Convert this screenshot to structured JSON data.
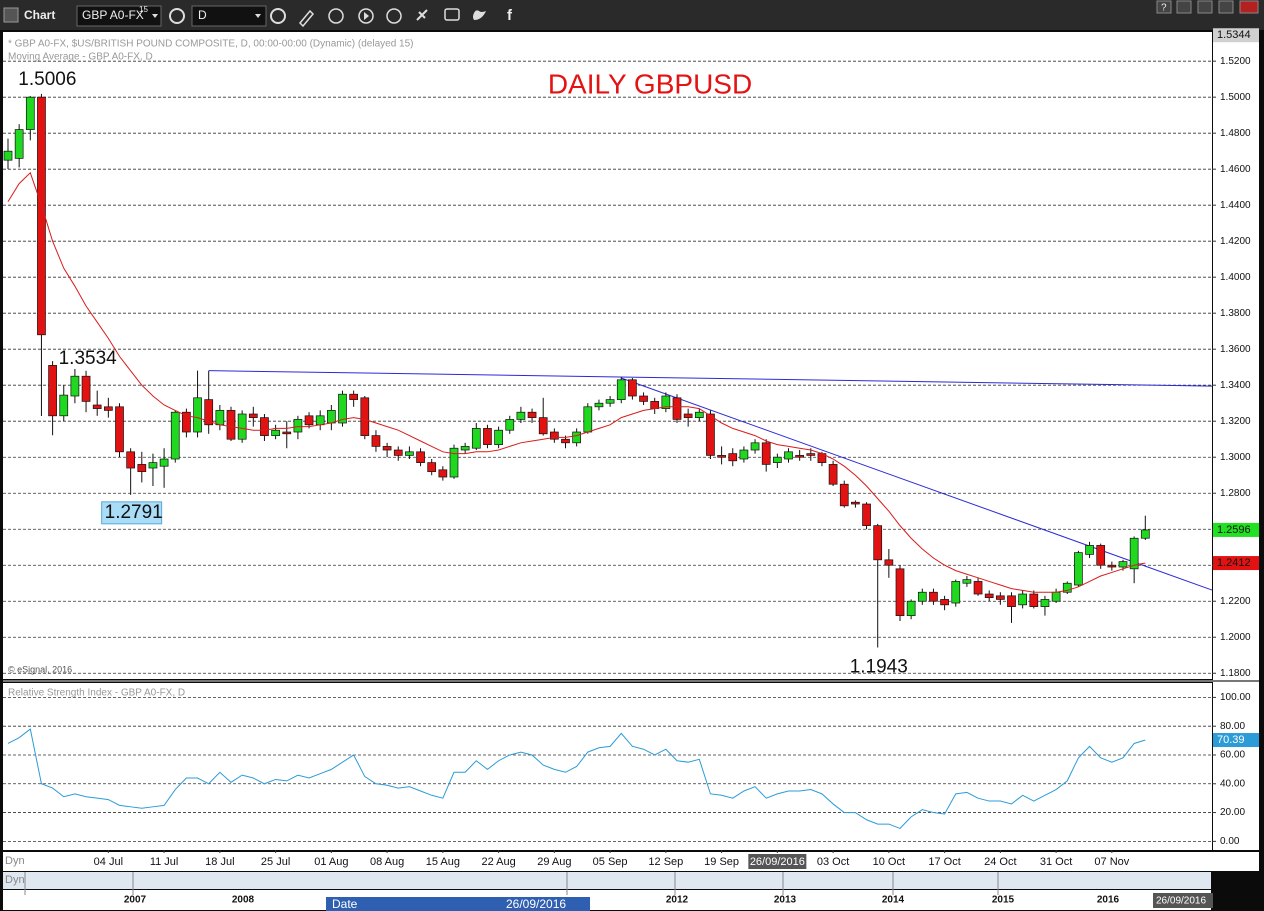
{
  "toolbar": {
    "title": "Chart",
    "symbol": "GBP A0-FX",
    "symbol_sup": "15",
    "interval": "D",
    "help": "?"
  },
  "chart_data": [
    {
      "type": "candlestick",
      "title": "DAILY GBPUSD",
      "subtitle": "* GBP A0-FX, $US/BRITISH POUND COMPOSITE, D, 00:00-00:00 (Dynamic) (delayed 15)",
      "copyright": "© eSignal, 2016",
      "categories": [
        null,
        null,
        null,
        null,
        null,
        null,
        null,
        null,
        null,
        "04 Jul",
        null,
        null,
        null,
        null,
        "11 Jul",
        null,
        null,
        null,
        null,
        "18 Jul",
        null,
        null,
        null,
        null,
        "25 Jul",
        null,
        null,
        null,
        null,
        "01 Aug",
        null,
        null,
        null,
        null,
        "08 Aug",
        null,
        null,
        null,
        null,
        "15 Aug",
        null,
        null,
        null,
        null,
        "22 Aug",
        null,
        null,
        null,
        null,
        "29 Aug",
        null,
        null,
        null,
        null,
        "05 Sep",
        null,
        null,
        null,
        null,
        "12 Sep",
        null,
        null,
        null,
        null,
        "19 Sep",
        null,
        null,
        null,
        null,
        "26/09/2016",
        null,
        null,
        null,
        null,
        "03 Oct",
        null,
        null,
        null,
        null,
        "10 Oct",
        null,
        null,
        null,
        null,
        "17 Oct",
        null,
        null,
        null,
        null,
        "24 Oct",
        null,
        null,
        null,
        null,
        "31 Oct",
        null,
        null,
        null,
        null,
        "07 Nov",
        null,
        null,
        null
      ],
      "open": [
        1.465,
        1.466,
        1.482,
        1.5,
        1.351,
        1.323,
        1.334,
        1.345,
        1.329,
        1.328,
        1.328,
        1.303,
        1.296,
        1.294,
        1.295,
        1.299,
        1.325,
        1.314,
        1.332,
        1.318,
        1.326,
        1.31,
        1.324,
        1.322,
        1.312,
        1.314,
        1.314,
        1.323,
        1.318,
        1.319,
        1.319,
        1.335,
        1.333,
        1.312,
        1.306,
        1.304,
        1.301,
        1.303,
        1.297,
        1.293,
        1.289,
        1.304,
        1.305,
        1.316,
        1.307,
        1.315,
        1.321,
        1.325,
        1.322,
        1.314,
        1.31,
        1.308,
        1.314,
        1.328,
        1.33,
        1.332,
        1.343,
        1.334,
        1.331,
        1.327,
        1.333,
        1.324,
        1.322,
        1.324,
        1.301,
        1.302,
        1.299,
        1.304,
        1.308,
        1.297,
        1.299,
        1.301,
        1.302,
        1.302,
        1.296,
        1.285,
        1.275,
        1.274,
        1.262,
        1.243,
        1.238,
        1.212,
        1.22,
        1.225,
        1.221,
        1.219,
        1.23,
        1.231,
        1.224,
        1.223,
        1.223,
        1.218,
        1.224,
        1.217,
        1.22,
        1.225,
        1.229,
        1.246,
        1.251,
        1.24,
        1.239,
        1.238,
        1.255
      ],
      "high": [
        1.477,
        1.485,
        1.5006,
        1.5018,
        1.3534,
        1.34,
        1.349,
        1.348,
        1.337,
        1.333,
        1.33,
        1.305,
        1.303,
        1.302,
        1.305,
        1.326,
        1.327,
        1.3481,
        1.348,
        1.329,
        1.328,
        1.326,
        1.328,
        1.324,
        1.318,
        1.32,
        1.323,
        1.325,
        1.326,
        1.329,
        1.337,
        1.337,
        1.334,
        1.315,
        1.308,
        1.306,
        1.306,
        1.305,
        1.299,
        1.295,
        1.307,
        1.308,
        1.319,
        1.318,
        1.317,
        1.323,
        1.328,
        1.327,
        1.333,
        1.316,
        1.312,
        1.316,
        1.33,
        1.332,
        1.334,
        1.3445,
        1.344,
        1.336,
        1.333,
        1.336,
        1.335,
        1.327,
        1.327,
        1.326,
        1.306,
        1.305,
        1.306,
        1.31,
        1.31,
        1.302,
        1.305,
        1.304,
        1.305,
        1.303,
        1.298,
        1.287,
        1.276,
        1.275,
        1.263,
        1.249,
        1.24,
        1.221,
        1.227,
        1.227,
        1.223,
        1.232,
        1.234,
        1.233,
        1.226,
        1.225,
        1.225,
        1.226,
        1.226,
        1.223,
        1.227,
        1.231,
        1.248,
        1.253,
        1.252,
        1.242,
        1.243,
        1.256,
        1.2675
      ],
      "low": [
        1.46,
        1.461,
        1.476,
        1.3229,
        1.3122,
        1.32,
        1.33,
        1.325,
        1.323,
        1.322,
        1.3,
        1.2791,
        1.286,
        1.284,
        1.283,
        1.297,
        1.311,
        1.311,
        1.313,
        1.315,
        1.309,
        1.308,
        1.317,
        1.309,
        1.31,
        1.305,
        1.31,
        1.316,
        1.315,
        1.315,
        1.317,
        1.328,
        1.31,
        1.303,
        1.3,
        1.298,
        1.299,
        1.295,
        1.29,
        1.287,
        1.288,
        1.302,
        1.304,
        1.305,
        1.305,
        1.313,
        1.319,
        1.319,
        1.312,
        1.308,
        1.305,
        1.306,
        1.313,
        1.326,
        1.328,
        1.33,
        1.332,
        1.329,
        1.324,
        1.325,
        1.319,
        1.317,
        1.32,
        1.299,
        1.296,
        1.295,
        1.297,
        1.302,
        1.292,
        1.294,
        1.297,
        1.298,
        1.298,
        1.295,
        1.284,
        1.272,
        1.272,
        1.26,
        1.1943,
        1.233,
        1.209,
        1.21,
        1.218,
        1.218,
        1.215,
        1.217,
        1.228,
        1.223,
        1.22,
        1.218,
        1.208,
        1.216,
        1.216,
        1.212,
        1.219,
        1.224,
        1.228,
        1.244,
        1.238,
        1.237,
        1.237,
        1.23,
        1.254
      ],
      "close": [
        1.47,
        1.482,
        1.5,
        1.368,
        1.323,
        1.3345,
        1.345,
        1.331,
        1.327,
        1.326,
        1.303,
        1.294,
        1.292,
        1.297,
        1.299,
        1.325,
        1.314,
        1.333,
        1.318,
        1.326,
        1.31,
        1.324,
        1.322,
        1.312,
        1.315,
        1.313,
        1.321,
        1.318,
        1.323,
        1.326,
        1.335,
        1.332,
        1.312,
        1.306,
        1.304,
        1.301,
        1.303,
        1.297,
        1.292,
        1.289,
        1.305,
        1.306,
        1.316,
        1.307,
        1.315,
        1.321,
        1.325,
        1.322,
        1.313,
        1.31,
        1.308,
        1.314,
        1.328,
        1.33,
        1.332,
        1.343,
        1.334,
        1.331,
        1.327,
        1.334,
        1.321,
        1.322,
        1.325,
        1.301,
        1.3,
        1.298,
        1.304,
        1.308,
        1.296,
        1.3,
        1.303,
        1.3,
        1.301,
        1.297,
        1.285,
        1.273,
        1.274,
        1.262,
        1.243,
        1.24,
        1.212,
        1.22,
        1.225,
        1.22,
        1.218,
        1.231,
        1.232,
        1.224,
        1.222,
        1.221,
        1.217,
        1.224,
        1.217,
        1.221,
        1.225,
        1.23,
        1.247,
        1.251,
        1.24,
        1.239,
        1.242,
        1.255,
        1.2596
      ],
      "up_color": "#1fd81f",
      "down_color": "#e31212",
      "series": [
        {
          "name": "Moving Average - GBP A0-FX, D",
          "color": "#d91c1c",
          "values": [
            1.442,
            1.452,
            1.458,
            1.44,
            1.42,
            1.405,
            1.395,
            1.384,
            1.375,
            1.366,
            1.356,
            1.348,
            1.34,
            1.334,
            1.329,
            1.326,
            1.323,
            1.322,
            1.32,
            1.318,
            1.317,
            1.316,
            1.315,
            1.315,
            1.316,
            1.316,
            1.317,
            1.317,
            1.318,
            1.319,
            1.321,
            1.322,
            1.321,
            1.319,
            1.317,
            1.315,
            1.312,
            1.309,
            1.306,
            1.303,
            1.302,
            1.302,
            1.303,
            1.303,
            1.304,
            1.306,
            1.308,
            1.309,
            1.31,
            1.311,
            1.311,
            1.312,
            1.314,
            1.316,
            1.318,
            1.322,
            1.324,
            1.326,
            1.327,
            1.328,
            1.328,
            1.328,
            1.327,
            1.323,
            1.319,
            1.316,
            1.314,
            1.312,
            1.309,
            1.307,
            1.306,
            1.305,
            1.304,
            1.302,
            1.299,
            1.295,
            1.29,
            1.284,
            1.277,
            1.27,
            1.262,
            1.255,
            1.249,
            1.244,
            1.24,
            1.237,
            1.235,
            1.233,
            1.231,
            1.229,
            1.227,
            1.226,
            1.225,
            1.225,
            1.225,
            1.226,
            1.228,
            1.231,
            1.234,
            1.236,
            1.238,
            1.24,
            1.2412
          ]
        }
      ],
      "trendlines": [
        {
          "start": [
            18,
            1.3481
          ],
          "end": [
            108,
            1.3395
          ],
          "color": "#2b2bd6"
        },
        {
          "start": [
            55,
            1.344
          ],
          "end": [
            108,
            1.2262
          ],
          "color": "#2b2bd6"
        }
      ],
      "annotations": [
        {
          "index": 2,
          "value": 1.5006,
          "label": "1.5006",
          "boxed": false
        },
        {
          "index": 4,
          "value": 1.3534,
          "label": "1.3534",
          "boxed": false
        },
        {
          "index": 11,
          "value": 1.2791,
          "label": "1.2791",
          "boxed": true
        },
        {
          "index": 78,
          "value": 1.1943,
          "label": "1.1943",
          "boxed": false
        }
      ],
      "price_tags": [
        {
          "value": 1.5344,
          "label": "1.5344",
          "color": "#d0d0d0"
        },
        {
          "value": 1.2596,
          "label": "1.2596",
          "color": "#22e022"
        },
        {
          "value": 1.2412,
          "label": "1.2412",
          "color": "#e31212"
        }
      ],
      "ylim": [
        1.1768,
        1.5362
      ],
      "yticks": [
        {
          "value": 1.18,
          "label": "1.1800"
        },
        {
          "value": 1.2,
          "label": "1.2000"
        },
        {
          "value": 1.22,
          "label": "1.2200"
        },
        {
          "value": 1.24,
          "label": "1.2400"
        },
        {
          "value": 1.26,
          "label": "1.2600"
        },
        {
          "value": 1.28,
          "label": "1.2800"
        },
        {
          "value": 1.3,
          "label": "1.3000"
        },
        {
          "value": 1.32,
          "label": "1.3200"
        },
        {
          "value": 1.34,
          "label": "1.3400"
        },
        {
          "value": 1.36,
          "label": "1.3600"
        },
        {
          "value": 1.38,
          "label": "1.3800"
        },
        {
          "value": 1.4,
          "label": "1.4000"
        },
        {
          "value": 1.42,
          "label": "1.4200"
        },
        {
          "value": 1.44,
          "label": "1.4400"
        },
        {
          "value": 1.46,
          "label": "1.4600"
        },
        {
          "value": 1.48,
          "label": "1.4800"
        },
        {
          "value": 1.5,
          "label": "1.5000"
        },
        {
          "value": 1.52,
          "label": "1.5200"
        }
      ],
      "grid": true
    },
    {
      "type": "line",
      "title": "Relative Strength Index - GBP A0-FX, D",
      "series": [
        {
          "name": "Relative Strength Index - GBP A0-FX, D",
          "color": "#2b9cd8",
          "values": [
            68,
            72,
            78,
            40,
            37,
            31,
            33,
            31,
            30,
            29,
            25,
            24,
            23,
            24,
            25,
            36,
            44,
            44,
            40,
            48,
            41,
            46,
            44,
            40,
            43,
            42,
            46,
            44,
            47,
            50,
            55,
            60,
            45,
            40,
            39,
            37,
            38,
            35,
            32,
            30,
            48,
            48,
            56,
            50,
            56,
            60,
            62,
            60,
            53,
            50,
            48,
            52,
            62,
            65,
            66,
            75,
            66,
            64,
            60,
            64,
            56,
            55,
            57,
            33,
            32,
            30,
            35,
            38,
            30,
            33,
            35,
            35,
            36,
            33,
            26,
            20,
            20,
            15,
            12,
            12,
            9,
            17,
            22,
            20,
            19,
            33,
            34,
            30,
            28,
            28,
            26,
            32,
            28,
            32,
            36,
            42,
            58,
            66,
            58,
            55,
            58,
            68,
            70.39
          ]
        }
      ],
      "last_tag": {
        "value": 70.39,
        "label": "70.39"
      },
      "ylim": [
        -6,
        110
      ],
      "yticks": [
        {
          "value": 0,
          "label": "0.00"
        },
        {
          "value": 20,
          "label": "20.00"
        },
        {
          "value": 40,
          "label": "40.00"
        },
        {
          "value": 60,
          "label": "60.00"
        },
        {
          "value": 80,
          "label": "80.00"
        },
        {
          "value": 100,
          "label": "100.00"
        }
      ],
      "grid": true
    }
  ],
  "footer": {
    "dyn": [
      "Dyn",
      "Dyn"
    ],
    "years": [
      "2007",
      "2008",
      "2012",
      "2013",
      "2014",
      "2015",
      "2016"
    ],
    "date_caption": "Date",
    "date": "26/09/2016",
    "end_date": "26/09/2016"
  }
}
